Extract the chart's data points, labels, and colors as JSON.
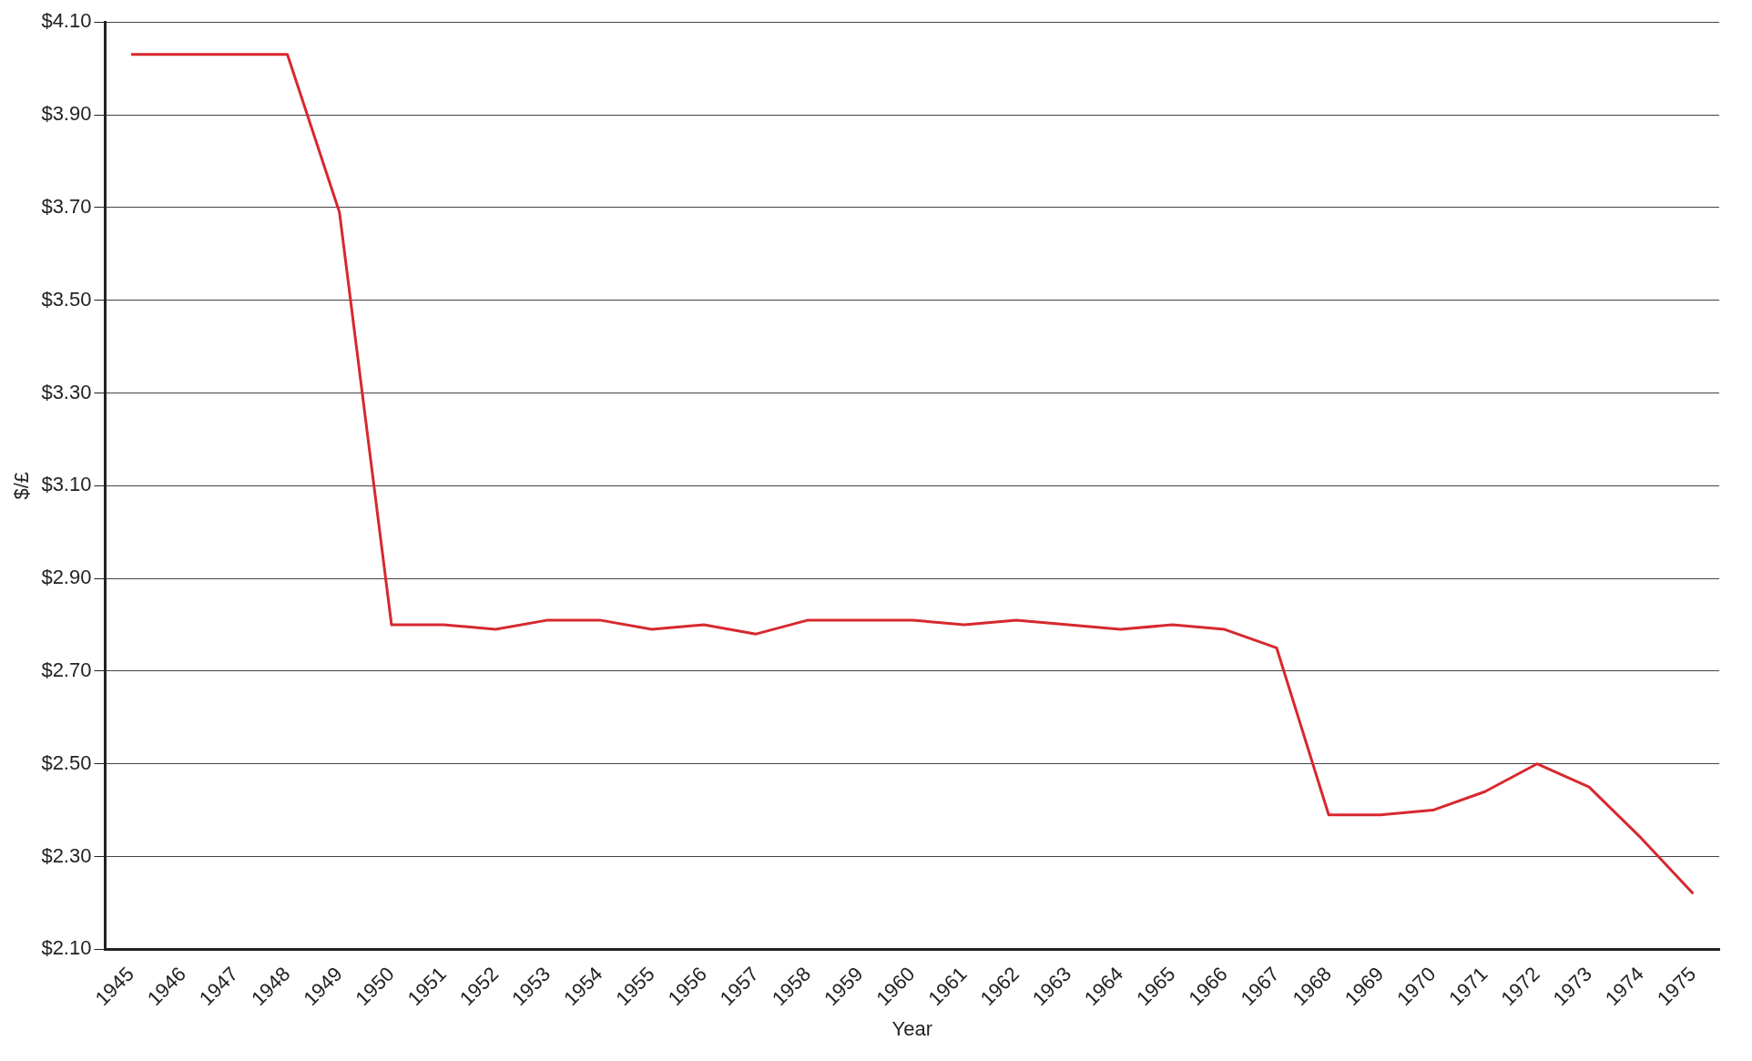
{
  "chart_data": {
    "type": "line",
    "xlabel": "Year",
    "ylabel": "$/£",
    "categories": [
      "1945",
      "1946",
      "1947",
      "1948",
      "1949",
      "1950",
      "1951",
      "1952",
      "1953",
      "1954",
      "1955",
      "1956",
      "1957",
      "1958",
      "1959",
      "1960",
      "1961",
      "1962",
      "1963",
      "1964",
      "1965",
      "1966",
      "1967",
      "1968",
      "1969",
      "1970",
      "1971",
      "1972",
      "1973",
      "1974",
      "1975"
    ],
    "series": [
      {
        "color": "#d7282f",
        "values": [
          4.03,
          4.03,
          4.03,
          4.03,
          3.69,
          2.8,
          2.8,
          2.79,
          2.81,
          2.81,
          2.79,
          2.8,
          2.78,
          2.81,
          2.81,
          2.81,
          2.8,
          2.81,
          2.8,
          2.79,
          2.8,
          2.79,
          2.75,
          2.39,
          2.39,
          2.4,
          2.44,
          2.5,
          2.45,
          2.34,
          2.22
        ]
      }
    ],
    "ylim": [
      2.1,
      4.1
    ],
    "yticks": [
      {
        "value": 2.1,
        "label": "$2.10"
      },
      {
        "value": 2.3,
        "label": "$2.30"
      },
      {
        "value": 2.5,
        "label": "$2.50"
      },
      {
        "value": 2.7,
        "label": "$2.70"
      },
      {
        "value": 2.9,
        "label": "$2.90"
      },
      {
        "value": 3.1,
        "label": "$3.10"
      },
      {
        "value": 3.3,
        "label": "$3.30"
      },
      {
        "value": 3.5,
        "label": "$3.50"
      },
      {
        "value": 3.7,
        "label": "$3.70"
      },
      {
        "value": 3.9,
        "label": "$3.90"
      },
      {
        "value": 4.1,
        "label": "$4.10"
      }
    ],
    "grid": "y",
    "legend": false,
    "marker": "none",
    "line_style": "solid"
  }
}
